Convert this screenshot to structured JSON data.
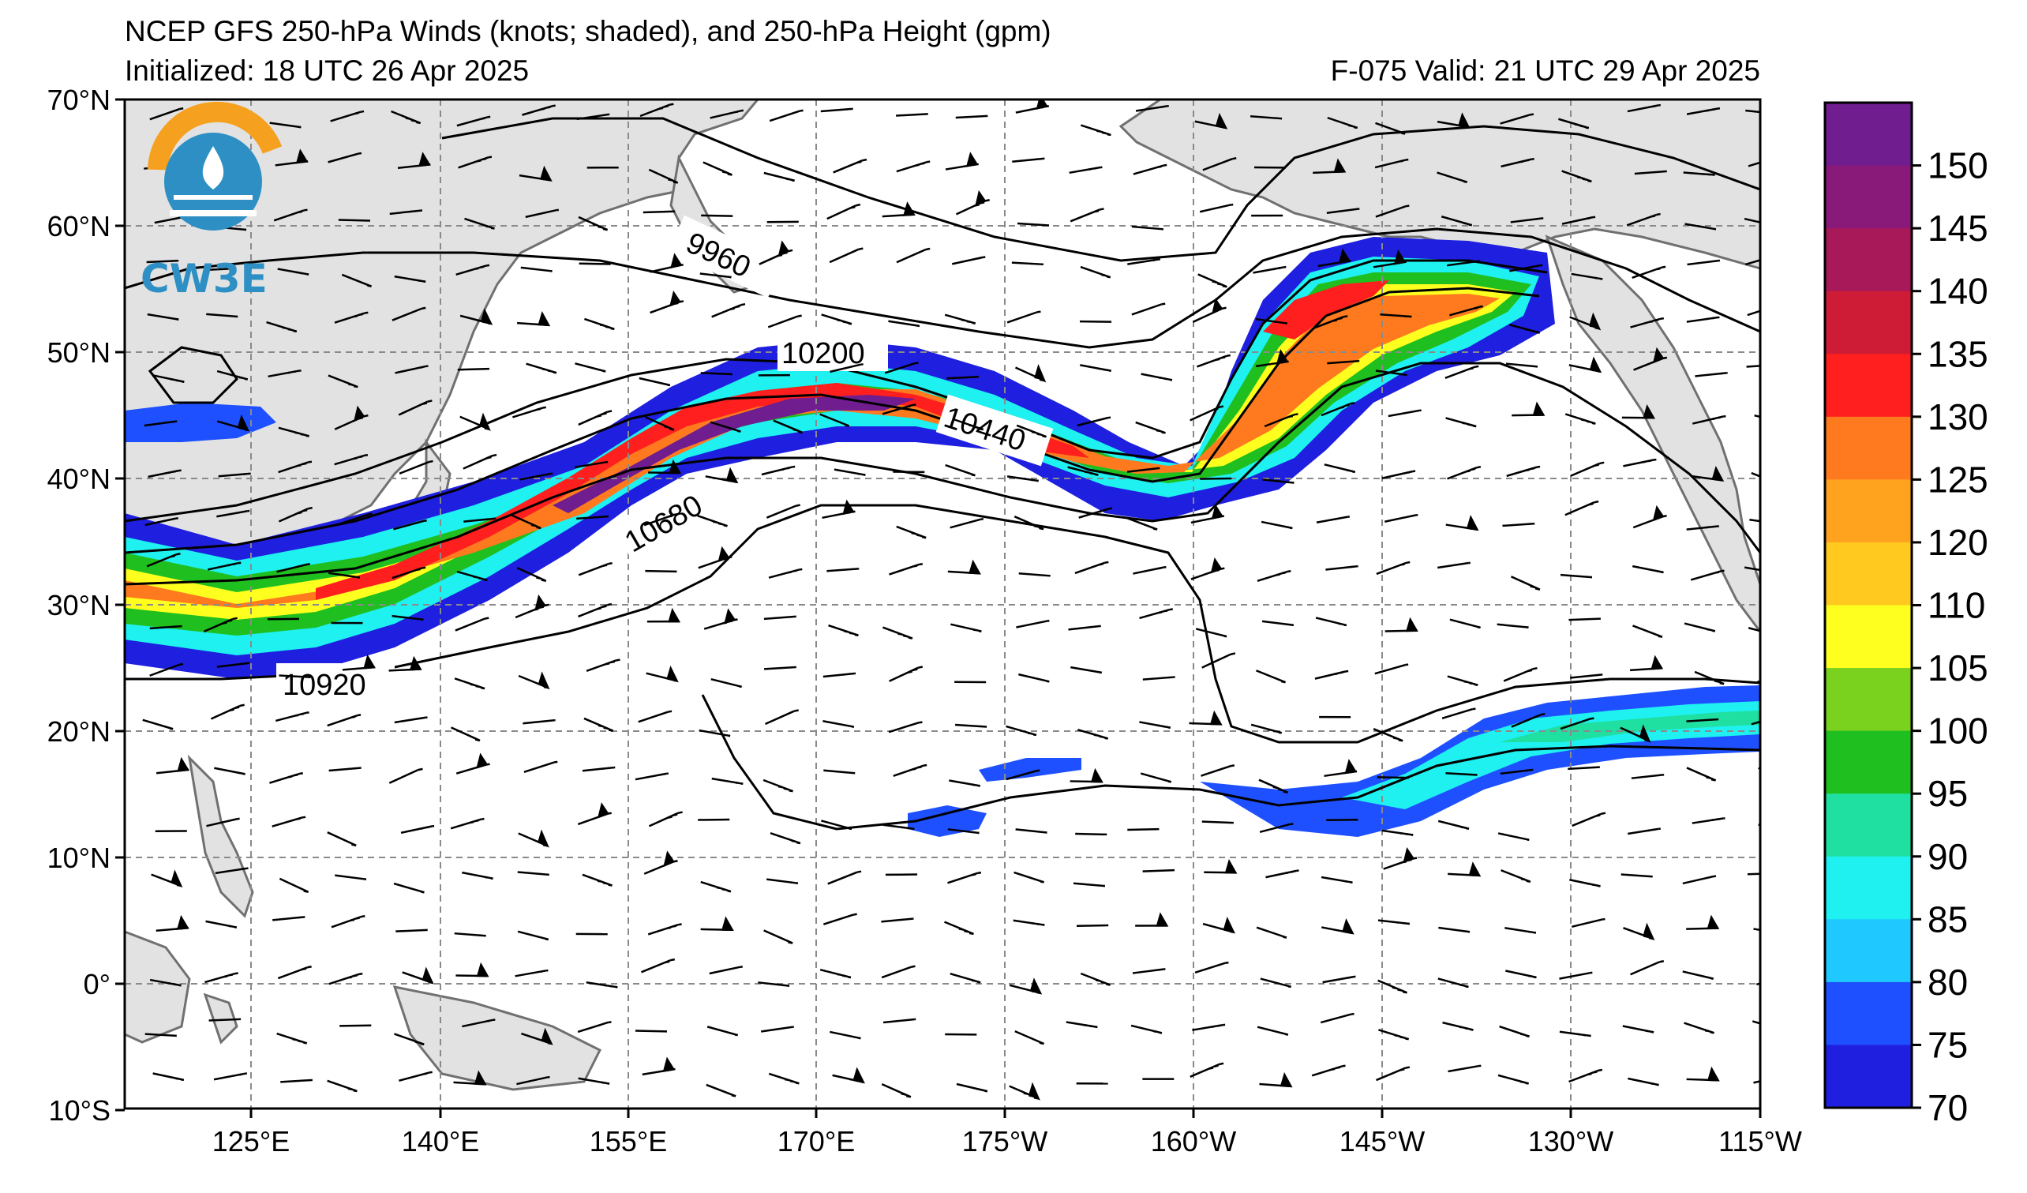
{
  "header": {
    "title": "NCEP GFS 250-hPa Winds (knots; shaded), and 250-hPa Height (gpm)",
    "initialized": "Initialized: 18 UTC 26 Apr 2025",
    "valid": "F-075  Valid: 21 UTC 29 Apr 2025"
  },
  "logo": {
    "text": "CW3E"
  },
  "map": {
    "lat_labels": [
      "70°N",
      "60°N",
      "50°N",
      "40°N",
      "30°N",
      "20°N",
      "10°N",
      "0°",
      "10°S"
    ],
    "lon_labels": [
      "125°E",
      "140°E",
      "155°E",
      "170°E",
      "175°W",
      "160°W",
      "145°W",
      "130°W",
      "115°W"
    ],
    "height_contours": [
      "9960",
      "10200",
      "10440",
      "10680",
      "10920"
    ]
  },
  "colorbar": {
    "labels": [
      "150",
      "145",
      "140",
      "135",
      "130",
      "125",
      "120",
      "110",
      "105",
      "100",
      "95",
      "90",
      "85",
      "80",
      "75",
      "70"
    ],
    "colors": [
      "#6f1d8f",
      "#8a1a7a",
      "#a8195a",
      "#cf1c36",
      "#ff1f1f",
      "#ff7a1f",
      "#ffa31f",
      "#ffc91f",
      "#ffff1f",
      "#7ad21f",
      "#1fbf1f",
      "#1fe0a0",
      "#1ff0f0",
      "#1fc8ff",
      "#1f50ff",
      "#1f1fe0"
    ]
  }
}
